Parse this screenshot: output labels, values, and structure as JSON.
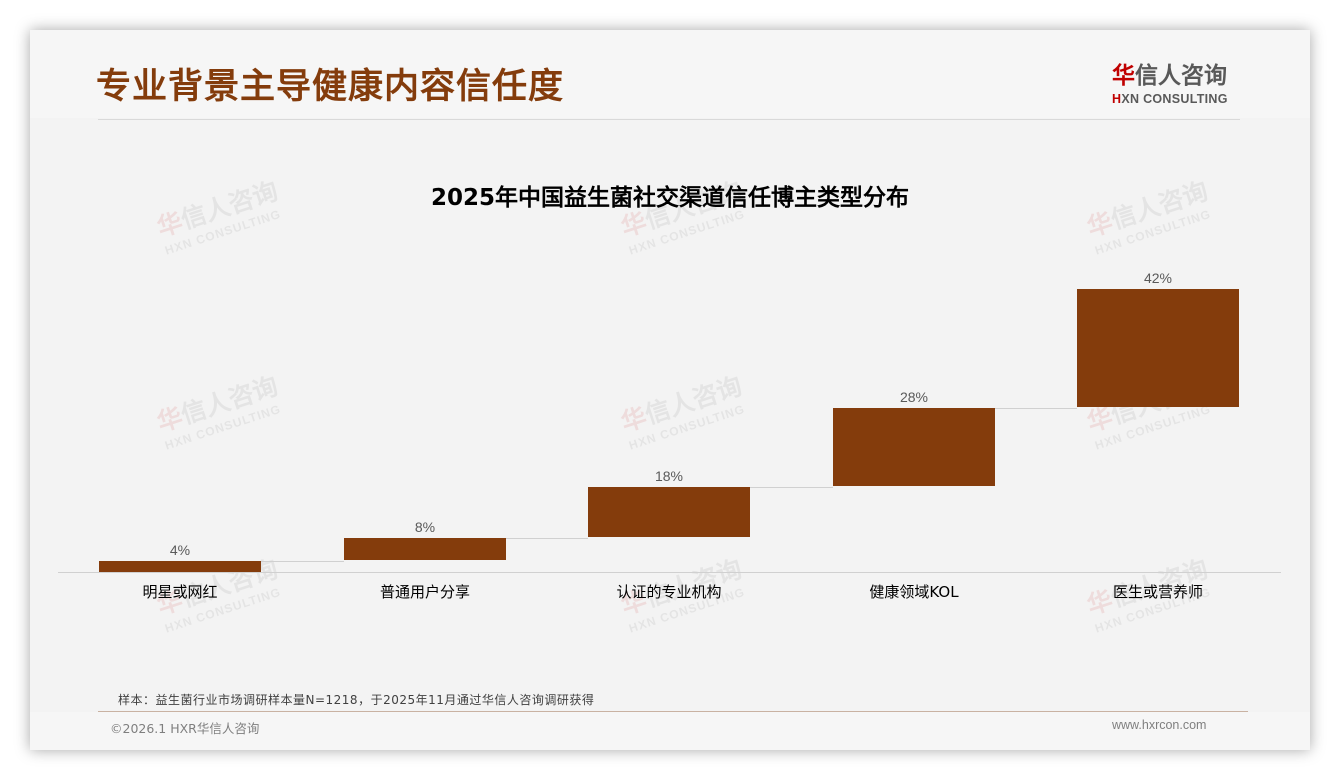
{
  "page": {
    "title": "专业背景主导健康内容信任度"
  },
  "logo": {
    "cn_first": "华",
    "cn_rest": "信人咨询",
    "en_first": "H",
    "en_rest": "XN CONSULTING"
  },
  "watermark": {
    "cn_first": "华",
    "cn_rest": "信人咨询",
    "en": "HXN CONSULTING"
  },
  "chart_data": {
    "type": "bar",
    "subtype": "waterfall",
    "title": "2025年中国益生菌社交渠道信任博主类型分布",
    "categories": [
      "明星或网红",
      "普通用户分享",
      "认证的专业机构",
      "健康领域KOL",
      "医生或营养师"
    ],
    "values": [
      4,
      8,
      18,
      28,
      42
    ],
    "labels": [
      "4%",
      "8%",
      "18%",
      "28%",
      "42%"
    ],
    "cumulative_start": [
      0,
      4,
      12,
      30,
      58
    ],
    "cumulative_end": [
      4,
      12,
      30,
      58,
      100
    ],
    "unit": "%",
    "xlabel": "",
    "ylabel": "",
    "ylim": [
      0,
      100
    ],
    "grid": false,
    "legend": "none",
    "bar_color": "#843c0c"
  },
  "footer": {
    "sample_note": "样本：益生菌行业市场调研样本量N=1218，于2025年11月通过华信人咨询调研获得",
    "copyright": "©2026.1 HXR华信人咨询",
    "website": "www.hxrcon.com"
  },
  "colors": {
    "accent": "#843c0c",
    "logo_red": "#c00000",
    "background": "#f3f3f3"
  }
}
